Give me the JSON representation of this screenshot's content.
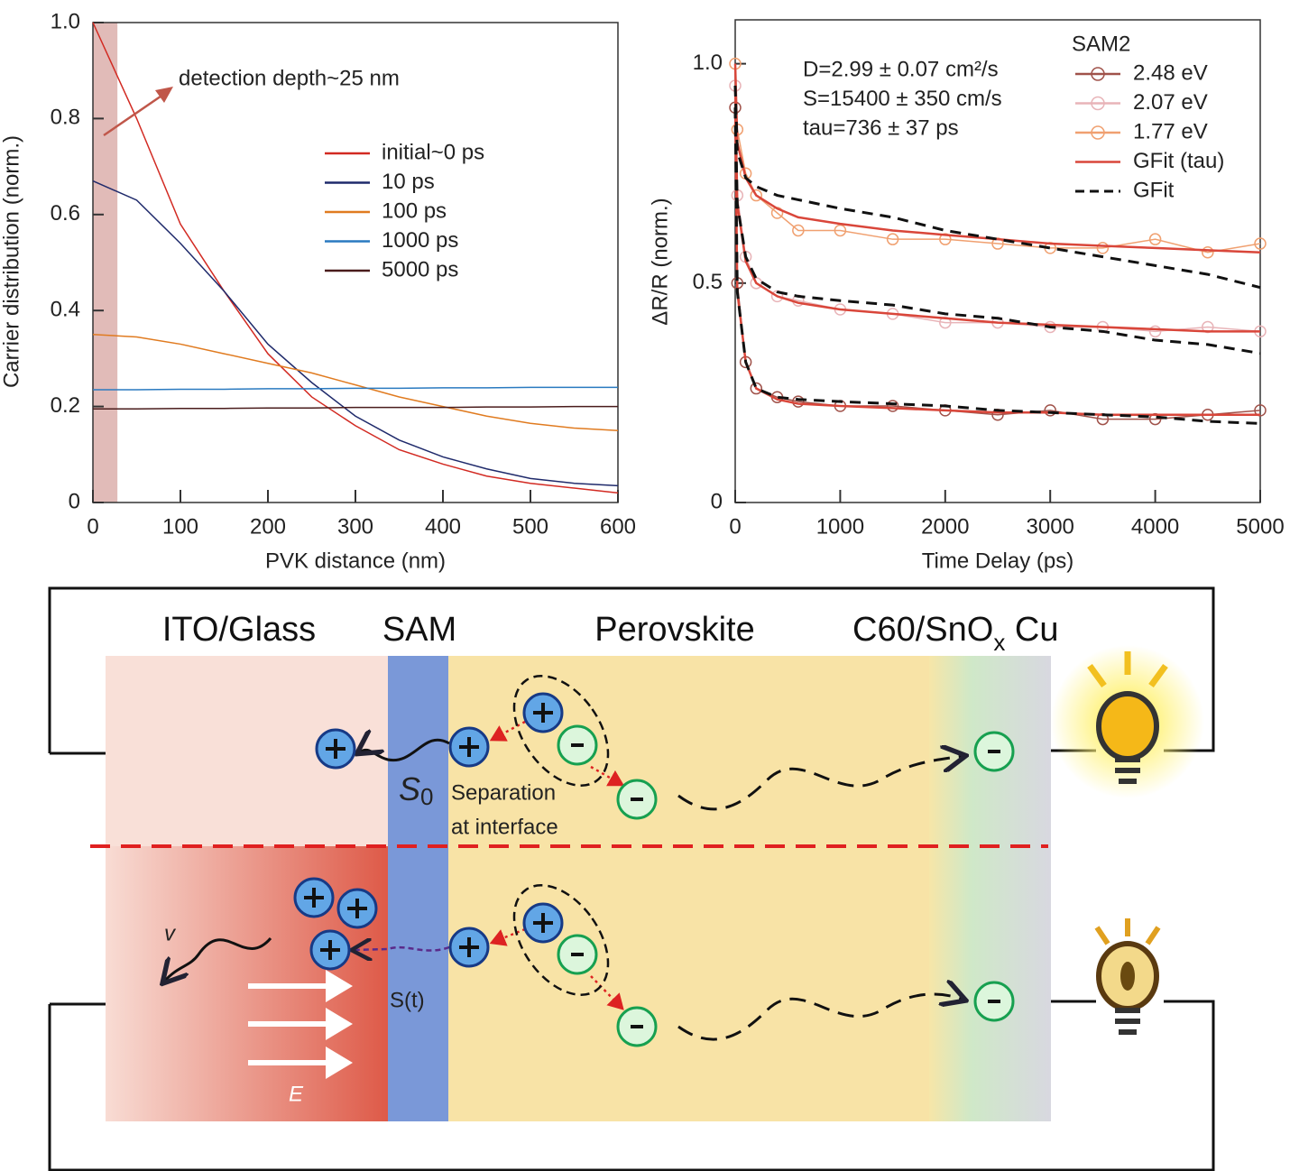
{
  "chart_data": [
    {
      "type": "line",
      "ylabel": "Carrier distribution (norm.)",
      "xlabel": "PVK distance (nm)",
      "annotation": "detection depth~25 nm",
      "shaded_range": [
        0,
        28
      ],
      "shade_color": "#d9aaa6",
      "x": [
        0,
        50,
        100,
        150,
        200,
        250,
        300,
        350,
        400,
        450,
        500,
        550,
        600
      ],
      "series": [
        {
          "name": "initial~0 ps",
          "color": "#d22a22",
          "values": [
            1.0,
            0.8,
            0.58,
            0.44,
            0.31,
            0.22,
            0.16,
            0.11,
            0.08,
            0.055,
            0.04,
            0.03,
            0.02
          ]
        },
        {
          "name": "10 ps",
          "color": "#1f2a6b",
          "values": [
            0.67,
            0.63,
            0.54,
            0.44,
            0.33,
            0.25,
            0.18,
            0.13,
            0.095,
            0.07,
            0.05,
            0.04,
            0.035
          ]
        },
        {
          "name": "100 ps",
          "color": "#e07b20",
          "values": [
            0.35,
            0.345,
            0.33,
            0.31,
            0.29,
            0.27,
            0.245,
            0.22,
            0.2,
            0.18,
            0.165,
            0.155,
            0.15
          ]
        },
        {
          "name": "1000 ps",
          "color": "#2a7ac0",
          "values": [
            0.235,
            0.235,
            0.236,
            0.236,
            0.237,
            0.237,
            0.238,
            0.238,
            0.239,
            0.239,
            0.24,
            0.24,
            0.24
          ]
        },
        {
          "name": "5000 ps",
          "color": "#4a1c1c",
          "values": [
            0.195,
            0.195,
            0.196,
            0.196,
            0.197,
            0.197,
            0.198,
            0.198,
            0.198,
            0.199,
            0.199,
            0.2,
            0.2
          ]
        }
      ],
      "xlim": [
        0,
        600
      ],
      "ylim": [
        0,
        1
      ],
      "xticks": [
        0,
        100,
        200,
        300,
        400,
        500,
        600
      ],
      "yticks": [
        0,
        0.2,
        0.4,
        0.6,
        0.8,
        {
          "value": 1,
          "label": "1.0"
        }
      ]
    },
    {
      "type": "line",
      "ylabel": "ΔR/R (norm.)",
      "xlabel": "Time Delay (ps)",
      "legend_title": "SAM2",
      "annotations": [
        "D=2.99 ± 0.07 cm²/s",
        "S=15400 ± 350 cm/s",
        "tau=736 ± 37 ps"
      ],
      "x": [
        0,
        20,
        100,
        200,
        400,
        600,
        1000,
        1500,
        2000,
        2500,
        3000,
        3500,
        4000,
        4500,
        5000
      ],
      "series": [
        {
          "name": "2.48 eV",
          "color": "#a0524a",
          "markers": true,
          "values": [
            0.9,
            0.5,
            0.32,
            0.26,
            0.24,
            0.23,
            0.22,
            0.22,
            0.21,
            0.2,
            0.21,
            0.19,
            0.19,
            0.2,
            0.21
          ]
        },
        {
          "name": "2.07 eV",
          "color": "#e8b4b8",
          "markers": true,
          "values": [
            0.95,
            0.7,
            0.56,
            0.5,
            0.47,
            0.46,
            0.44,
            0.43,
            0.41,
            0.41,
            0.4,
            0.4,
            0.39,
            0.4,
            0.39
          ]
        },
        {
          "name": "1.77 eV",
          "color": "#f0a070",
          "markers": true,
          "values": [
            1.0,
            0.85,
            0.75,
            0.7,
            0.66,
            0.62,
            0.62,
            0.6,
            0.6,
            0.59,
            0.58,
            0.58,
            0.6,
            0.57,
            0.59
          ]
        },
        {
          "name": "GFit (tau)",
          "color": "#d9463a",
          "dash": false,
          "curves": [
            [
              0.9,
              0.48,
              0.32,
              0.26,
              0.235,
              0.225,
              0.22,
              0.215,
              0.21,
              0.205,
              0.205,
              0.2,
              0.2,
              0.2,
              0.2
            ],
            [
              0.95,
              0.68,
              0.55,
              0.5,
              0.47,
              0.455,
              0.44,
              0.43,
              0.42,
              0.41,
              0.405,
              0.4,
              0.395,
              0.39,
              0.39
            ],
            [
              1.0,
              0.82,
              0.74,
              0.7,
              0.67,
              0.65,
              0.635,
              0.62,
              0.61,
              0.6,
              0.59,
              0.585,
              0.58,
              0.575,
              0.57
            ]
          ]
        },
        {
          "name": "GFit",
          "color": "#111111",
          "dash": true,
          "curves": [
            [
              0.9,
              0.48,
              0.32,
              0.26,
              0.24,
              0.235,
              0.23,
              0.225,
              0.22,
              0.21,
              0.205,
              0.2,
              0.195,
              0.185,
              0.18
            ],
            [
              0.9,
              0.68,
              0.56,
              0.51,
              0.48,
              0.47,
              0.46,
              0.45,
              0.43,
              0.42,
              0.4,
              0.39,
              0.37,
              0.36,
              0.34
            ],
            [
              0.95,
              0.8,
              0.74,
              0.72,
              0.7,
              0.69,
              0.67,
              0.65,
              0.62,
              0.6,
              0.58,
              0.56,
              0.54,
              0.52,
              0.49
            ]
          ]
        }
      ],
      "xlim": [
        0,
        5000
      ],
      "ylim": [
        0,
        1.1
      ],
      "xticks": [
        0,
        1000,
        2000,
        3000,
        4000,
        5000
      ],
      "yticks": [
        0,
        0.5,
        {
          "value": 1,
          "label": "1.0"
        }
      ]
    }
  ],
  "diagram": {
    "layers": [
      "ITO/Glass",
      "SAM",
      "Perovskite"
    ],
    "c60_label": {
      "main": "C60/SnO",
      "sub": "x",
      "after": " Cu"
    },
    "s0": {
      "main": "S",
      "sub": "0"
    },
    "separation": [
      "Separation",
      "at interface"
    ],
    "st": "S(t)",
    "v": "v",
    "E": "E"
  }
}
